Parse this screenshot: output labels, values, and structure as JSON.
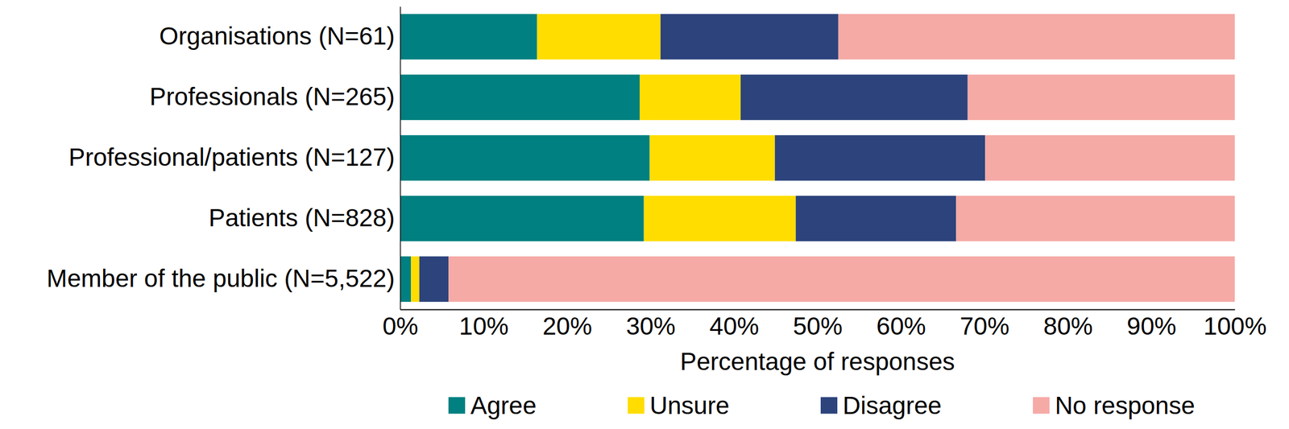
{
  "chart_data": {
    "type": "bar",
    "orientation": "horizontal",
    "stacked": true,
    "grid": false,
    "legend": "bottom",
    "x_label": "Percentage of responses",
    "categories": [
      "Organisations (N=61)",
      "Professionals (N=265)",
      "Professional/patients (N=127)",
      "Patients (N=828)",
      "Member of the public (N=5,522)"
    ],
    "series": [
      {
        "name": "Agree",
        "color": "#008080",
        "values": [
          16.4,
          28.7,
          29.9,
          29.2,
          1.3
        ]
      },
      {
        "name": "Unsure",
        "color": "#ffdd00",
        "values": [
          14.8,
          12.1,
          15.0,
          18.2,
          1.0
        ]
      },
      {
        "name": "Disagree",
        "color": "#2c437c",
        "values": [
          21.3,
          27.2,
          25.2,
          19.2,
          3.5
        ]
      },
      {
        "name": "No response",
        "color": "#f5aaa6",
        "values": [
          47.5,
          32.0,
          29.9,
          33.4,
          94.2
        ]
      }
    ],
    "xlim": [
      0,
      100
    ],
    "xticks": [
      {
        "value": 0,
        "label": "0%"
      },
      {
        "value": 10,
        "label": "10%"
      },
      {
        "value": 20,
        "label": "20%"
      },
      {
        "value": 30,
        "label": "30%"
      },
      {
        "value": 40,
        "label": "40%"
      },
      {
        "value": 50,
        "label": "50%"
      },
      {
        "value": 60,
        "label": "60%"
      },
      {
        "value": 70,
        "label": "70%"
      },
      {
        "value": 80,
        "label": "80%"
      },
      {
        "value": 90,
        "label": "90%"
      },
      {
        "value": 100,
        "label": "100%"
      }
    ]
  }
}
